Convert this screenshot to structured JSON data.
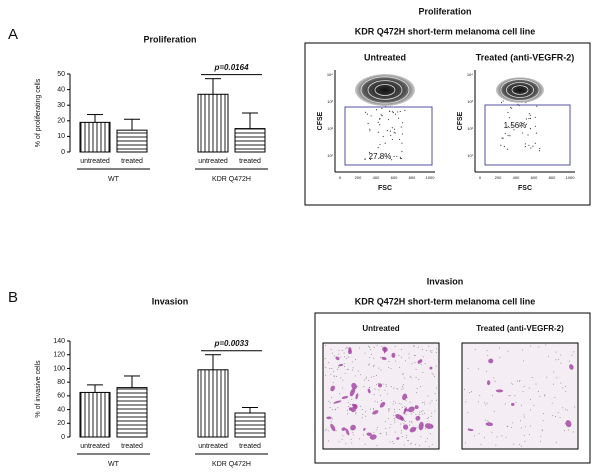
{
  "panel_letters": [
    "A",
    "B"
  ],
  "chart_data": [
    {
      "type": "bar",
      "title": "Proliferation",
      "y_label": "% of proliferating cells",
      "categories": [
        "untreated",
        "treated",
        "untreated",
        "treated"
      ],
      "groups": [
        "WT",
        "KDR Q472H"
      ],
      "values": [
        19,
        14,
        37,
        15
      ],
      "errors": [
        5,
        7,
        10,
        10
      ],
      "annotation": "p=0.0164",
      "ylim": [
        0,
        50
      ],
      "yticks": [
        0,
        10,
        20,
        30,
        40,
        50
      ]
    },
    {
      "type": "bar",
      "title": "Invasion",
      "y_label": "% of invasive cells",
      "categories": [
        "untreated",
        "treated",
        "untreated",
        "treated"
      ],
      "groups": [
        "WT",
        "KDR Q472H"
      ],
      "values": [
        65,
        72,
        98,
        35
      ],
      "errors": [
        11,
        17,
        22,
        8
      ],
      "annotation": "p=0.0033",
      "ylim": [
        0,
        140
      ],
      "yticks": [
        0,
        20,
        40,
        60,
        80,
        100,
        120,
        140
      ]
    }
  ],
  "flow": {
    "title": "Proliferation",
    "subtitle": "KDR Q472H short-term melanoma cell line",
    "y_label": "CFSE",
    "x_label": "FSC",
    "xticks": [
      "0",
      "200",
      "400",
      "600",
      "800",
      "1000"
    ],
    "yticks": [
      "10⁴",
      "10³",
      "10²",
      "10¹"
    ],
    "panels": [
      {
        "label": "Untreated",
        "gate": "27.8%"
      },
      {
        "label": "Treated (anti-VEGFR-2)",
        "gate": "1.56%"
      }
    ]
  },
  "invasion": {
    "title": "Invasion",
    "subtitle": "KDR Q472H short-term melanoma cell line",
    "panels": [
      {
        "label": "Untreated"
      },
      {
        "label": "Treated (anti-VEGFR-2)"
      }
    ]
  }
}
